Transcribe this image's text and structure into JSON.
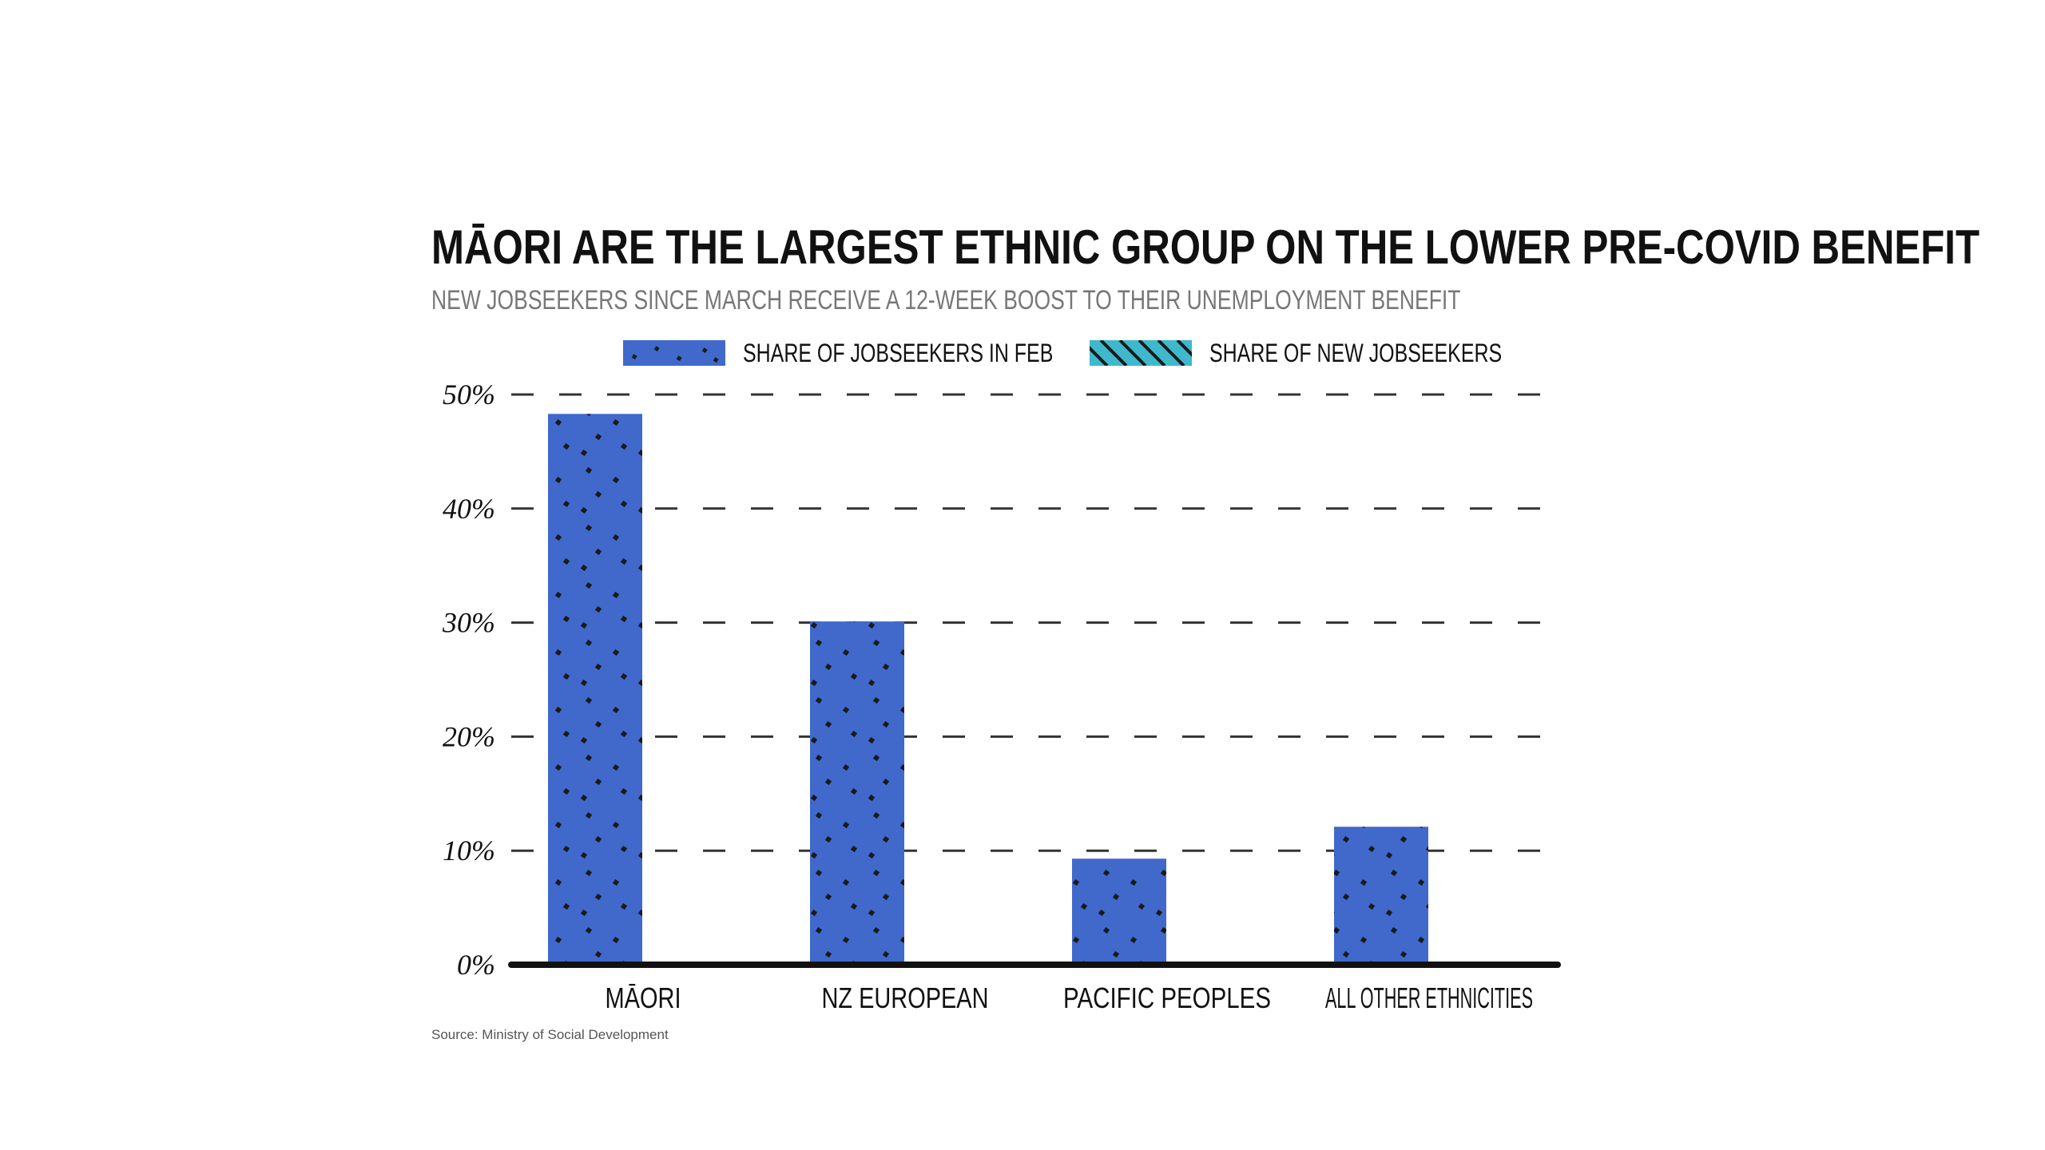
{
  "colors": {
    "series_feb": "#4169cc",
    "series_new": "#3fb8cc",
    "dots": "#1a1a1a",
    "grid": "#333333",
    "axis": "#111111",
    "background": "#ffffff"
  },
  "legend": {
    "items": [
      {
        "label": "SHARE OF JOBSEEKERS IN FEB",
        "pattern": "dots"
      },
      {
        "label": "SHARE OF NEW JOBSEEKERS",
        "pattern": "hatch"
      }
    ]
  },
  "source": "Source: Ministry of Social Development",
  "chart_data": {
    "type": "bar",
    "title": "MĀORI ARE THE LARGEST ETHNIC GROUP ON THE LOWER PRE-COVID BENEFIT",
    "subtitle": "NEW JOBSEEKERS SINCE MARCH RECEIVE A 12-WEEK BOOST TO THEIR UNEMPLOYMENT BENEFIT",
    "xlabel": "",
    "ylabel": "",
    "categories": [
      "MĀORI",
      "NZ EUROPEAN",
      "PACIFIC PEOPLES",
      "ALL OTHER ETHNICITIES"
    ],
    "series": [
      {
        "name": "SHARE OF JOBSEEKERS IN FEB",
        "values": [
          48.3,
          30.1,
          9.3,
          12.1
        ]
      },
      {
        "name": "SHARE OF NEW JOBSEEKERS",
        "values": [
          null,
          null,
          null,
          null
        ]
      }
    ],
    "ylim": [
      0,
      50
    ],
    "yticks": [
      0,
      10,
      20,
      30,
      40,
      50
    ],
    "ytick_labels": [
      "0%",
      "10%",
      "20%",
      "30%",
      "40%",
      "50%"
    ],
    "grid": true,
    "grid_style": "dashed",
    "legend_position": "top"
  }
}
